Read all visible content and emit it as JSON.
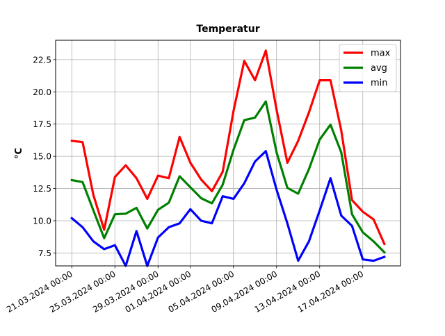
{
  "chart_data": {
    "type": "line",
    "title": "Temperatur",
    "xlabel": "",
    "ylabel": "°C",
    "grid": true,
    "legend_position": "top-right",
    "x": [
      "2024-03-21",
      "2024-03-22",
      "2024-03-23",
      "2024-03-24",
      "2024-03-25",
      "2024-03-26",
      "2024-03-27",
      "2024-03-28",
      "2024-03-29",
      "2024-03-30",
      "2024-03-31",
      "2024-04-01",
      "2024-04-02",
      "2024-04-03",
      "2024-04-04",
      "2024-04-05",
      "2024-04-06",
      "2024-04-07",
      "2024-04-08",
      "2024-04-09",
      "2024-04-10",
      "2024-04-11",
      "2024-04-12",
      "2024-04-13",
      "2024-04-14",
      "2024-04-15",
      "2024-04-16",
      "2024-04-17",
      "2024-04-18",
      "2024-04-19"
    ],
    "xlim": [
      "2024-03-19T12:00",
      "2024-04-20T12:00"
    ],
    "ylim": [
      6.5,
      24.0
    ],
    "xticks": [
      {
        "date": "2024-03-21",
        "label": "21.03.2024 00:00"
      },
      {
        "date": "2024-03-25",
        "label": "25.03.2024 00:00"
      },
      {
        "date": "2024-03-29",
        "label": "29.03.2024 00:00"
      },
      {
        "date": "2024-04-01",
        "label": "01.04.2024 00:00"
      },
      {
        "date": "2024-04-05",
        "label": "05.04.2024 00:00"
      },
      {
        "date": "2024-04-09",
        "label": "09.04.2024 00:00"
      },
      {
        "date": "2024-04-13",
        "label": "13.04.2024 00:00"
      },
      {
        "date": "2024-04-17",
        "label": "17.04.2024 00:00"
      }
    ],
    "yticks": [
      7.5,
      10.0,
      12.5,
      15.0,
      17.5,
      20.0,
      22.5
    ],
    "series": [
      {
        "name": "max",
        "color": "#ff0000",
        "values": [
          16.2,
          16.1,
          12.0,
          9.3,
          13.4,
          14.3,
          13.3,
          11.7,
          13.5,
          13.3,
          16.5,
          14.5,
          13.2,
          12.3,
          13.8,
          18.5,
          22.4,
          20.9,
          23.2,
          18.6,
          14.5,
          16.2,
          18.4,
          20.9,
          20.9,
          17.0,
          11.6,
          10.7,
          10.1,
          8.2
        ]
      },
      {
        "name": "avg",
        "color": "#008000",
        "values": [
          13.15,
          13.0,
          10.8,
          8.65,
          10.5,
          10.55,
          11.0,
          9.4,
          10.85,
          11.4,
          13.45,
          12.6,
          11.75,
          11.35,
          12.8,
          15.5,
          17.8,
          18.0,
          19.25,
          15.3,
          12.55,
          12.1,
          14.0,
          16.3,
          17.45,
          15.3,
          10.5,
          9.1,
          8.4,
          7.55
        ]
      },
      {
        "name": "min",
        "color": "#0000ff",
        "values": [
          10.2,
          9.5,
          8.4,
          7.8,
          8.1,
          6.5,
          9.2,
          6.5,
          8.7,
          9.5,
          9.8,
          10.9,
          10.0,
          9.8,
          11.9,
          11.7,
          12.9,
          14.6,
          15.4,
          12.4,
          9.8,
          6.9,
          8.4,
          10.8,
          13.3,
          10.4,
          9.6,
          7.0,
          6.9,
          7.2
        ]
      }
    ]
  }
}
